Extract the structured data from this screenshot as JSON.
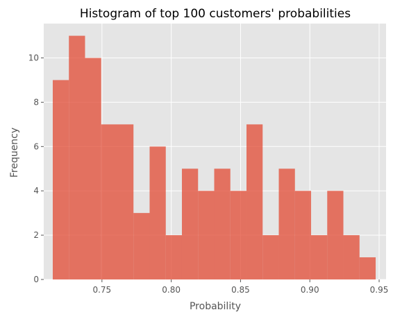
{
  "chart_data": {
    "type": "bar",
    "title": "Histogram of top 100 customers' probabilities",
    "xlabel": "Probability",
    "ylabel": "Frequency",
    "xlim": [
      0.708,
      0.955
    ],
    "ylim": [
      0,
      11.55
    ],
    "xticks": [
      0.75,
      0.8,
      0.85,
      0.9,
      0.95
    ],
    "xtick_labels": [
      "0.75",
      "0.80",
      "0.85",
      "0.90",
      "0.95"
    ],
    "yticks": [
      0,
      2,
      4,
      6,
      8,
      10
    ],
    "ytick_labels": [
      "0",
      "2",
      "4",
      "6",
      "8",
      "10"
    ],
    "bin_start": 0.7145,
    "bin_width": 0.01165,
    "values": [
      9,
      11,
      10,
      7,
      7,
      3,
      6,
      2,
      5,
      4,
      5,
      4,
      7,
      2,
      5,
      4,
      2,
      4,
      2,
      1
    ],
    "grid": true,
    "bar_color": "#E24A33",
    "background": "#E5E5E5"
  }
}
